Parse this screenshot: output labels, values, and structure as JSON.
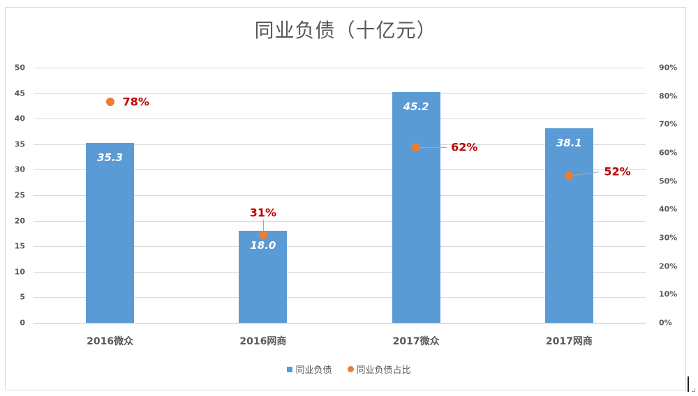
{
  "chart_data": {
    "type": "bar+scatter",
    "title": "同业负债（十亿元）",
    "categories": [
      "2016微众",
      "2016网商",
      "2017微众",
      "2017网商"
    ],
    "series": [
      {
        "name": "同业负债",
        "type": "bar",
        "axis": "left",
        "color": "#5b9bd5",
        "values": [
          35.3,
          18.0,
          45.2,
          38.1
        ],
        "labels": [
          "35.3",
          "18.0",
          "45.2",
          "38.1"
        ]
      },
      {
        "name": "同业负债占比",
        "type": "scatter",
        "axis": "right",
        "color": "#ed7d31",
        "values": [
          0.78,
          0.31,
          0.62,
          0.52
        ],
        "labels": [
          "78%",
          "31%",
          "62%",
          "52%"
        ]
      }
    ],
    "yaxis_left": {
      "min": 0,
      "max": 50,
      "step": 5,
      "ticks": [
        "0",
        "5",
        "10",
        "15",
        "20",
        "25",
        "30",
        "35",
        "40",
        "45",
        "50"
      ]
    },
    "yaxis_right": {
      "min": 0,
      "max": 0.9,
      "step": 0.1,
      "ticks": [
        "0%",
        "10%",
        "20%",
        "30%",
        "40%",
        "50%",
        "60%",
        "70%",
        "80%",
        "90%"
      ]
    },
    "grid": true,
    "legend_position": "bottom",
    "label_color": "#c00000"
  },
  "legend": {
    "items": [
      {
        "label": "同业负债",
        "marker": "square",
        "color": "#5b9bd5"
      },
      {
        "label": "同业负债占比",
        "marker": "circle",
        "color": "#ed7d31"
      }
    ]
  }
}
